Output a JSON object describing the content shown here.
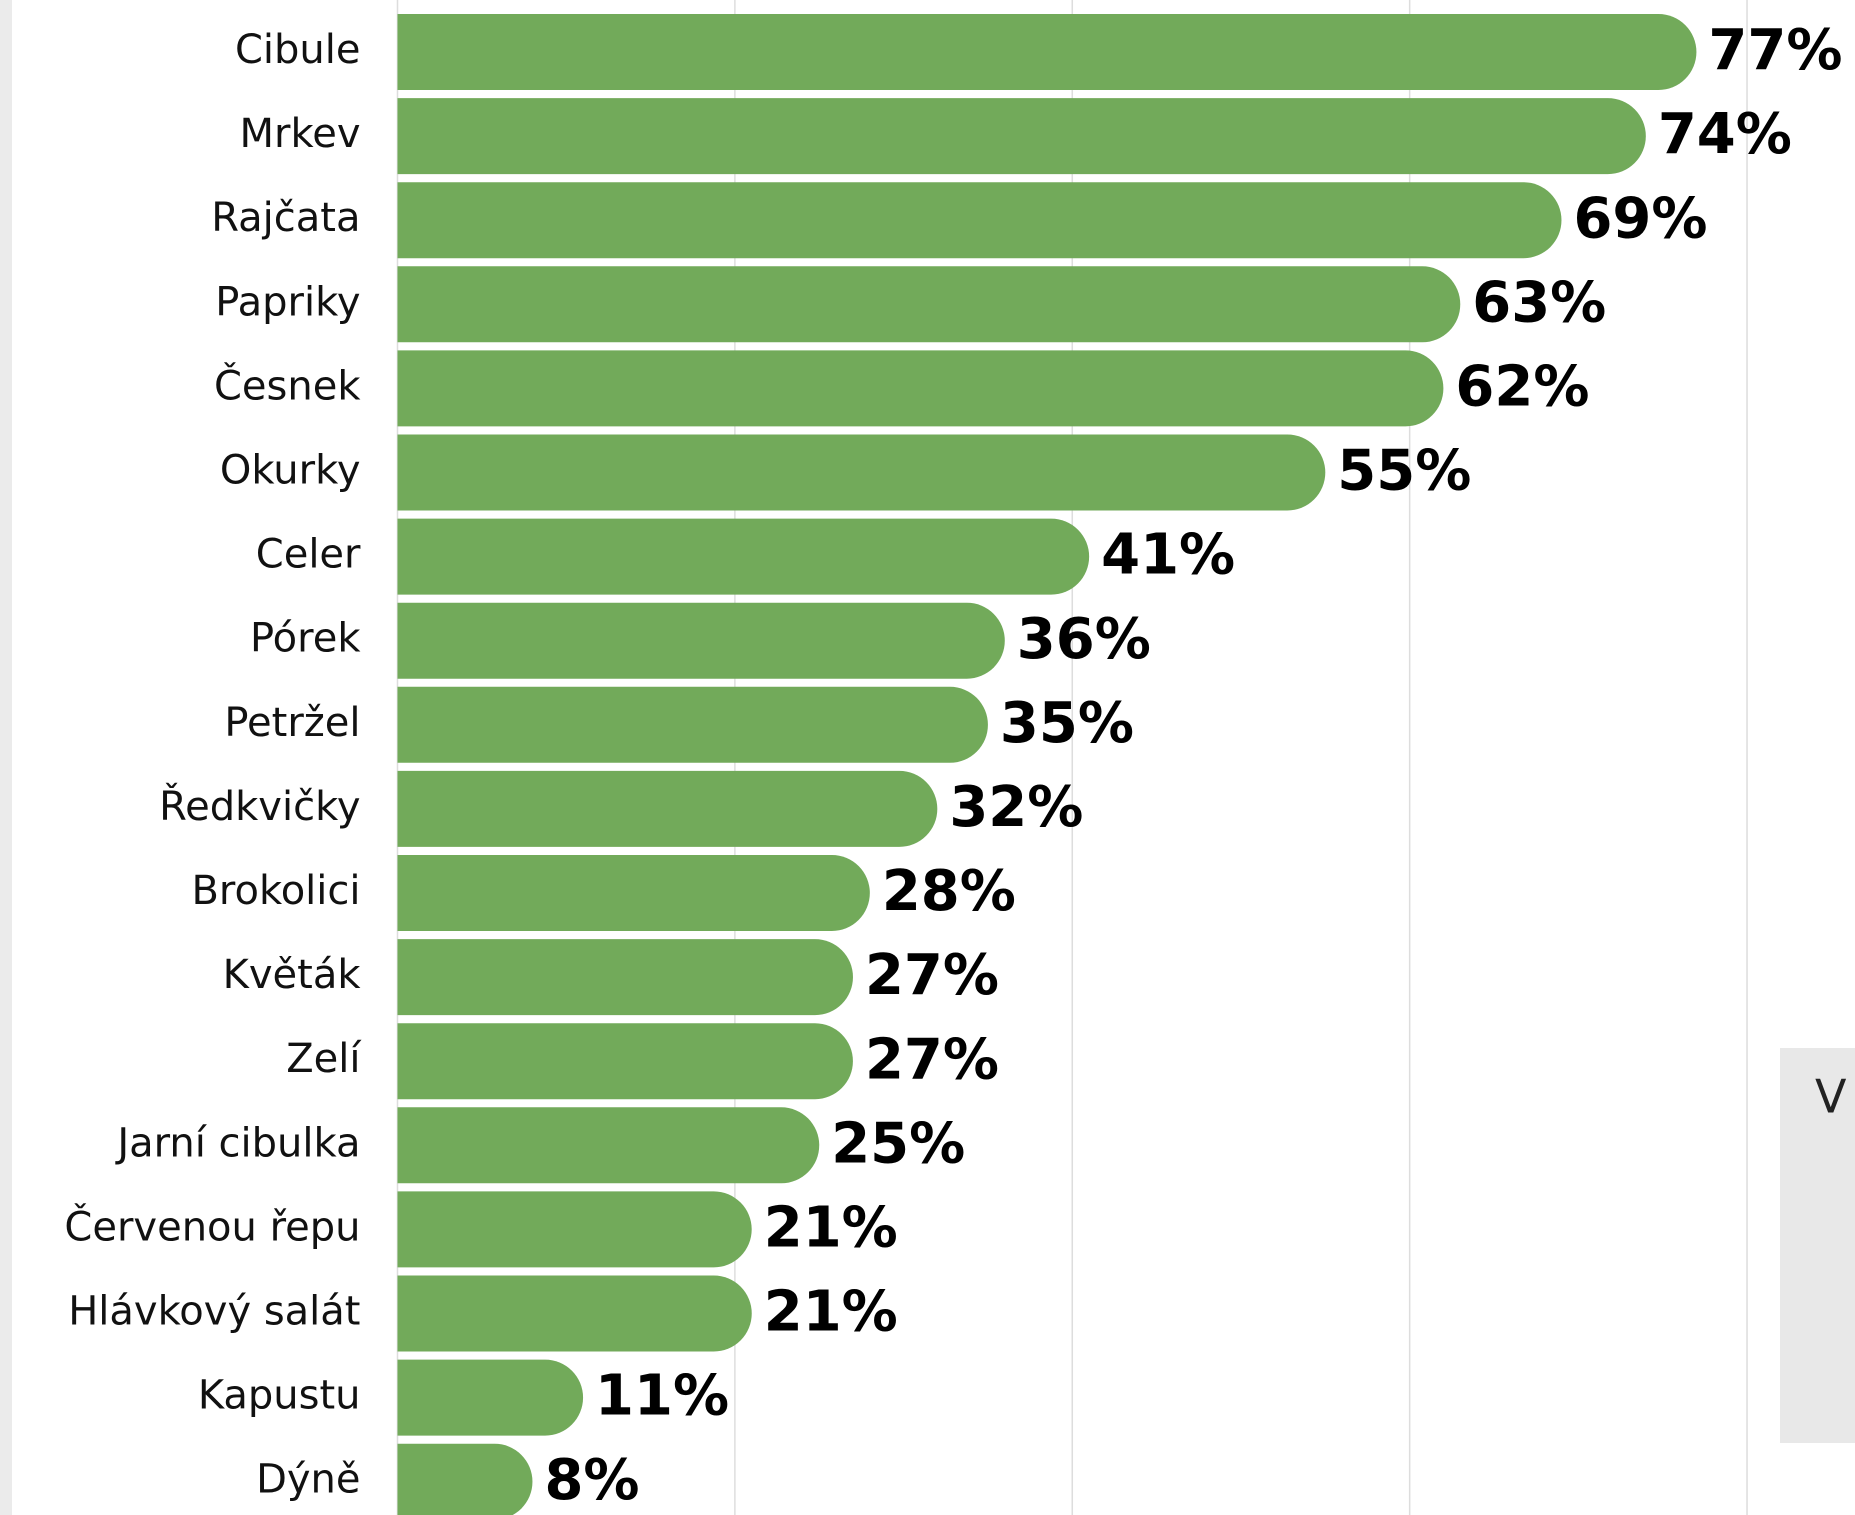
{
  "chart_data": {
    "type": "barh",
    "categories": [
      "Cibule",
      "Mrkev",
      "Rajčata",
      "Papriky",
      "Česnek",
      "Okurky",
      "Celer",
      "Pórek",
      "Petržel",
      "Ředkvičky",
      "Brokolici",
      "Květák",
      "Zelí",
      "Jarní cibulka",
      "Červenou řepu",
      "Hlávkový salát",
      "Kapustu",
      "Dýně"
    ],
    "values": [
      77,
      74,
      69,
      63,
      62,
      55,
      41,
      36,
      35,
      32,
      28,
      27,
      27,
      25,
      21,
      21,
      11,
      8
    ],
    "value_labels": [
      "77%",
      "74%",
      "69%",
      "63%",
      "62%",
      "55%",
      "41%",
      "36%",
      "35%",
      "32%",
      "28%",
      "27%",
      "27%",
      "25%",
      "21%",
      "21%",
      "11%",
      "8%"
    ],
    "color": "#72aa5a",
    "xlim": [
      0,
      86.4
    ],
    "xticks": [
      0,
      20,
      40,
      60,
      80
    ],
    "grid": true,
    "annotation": "V"
  }
}
